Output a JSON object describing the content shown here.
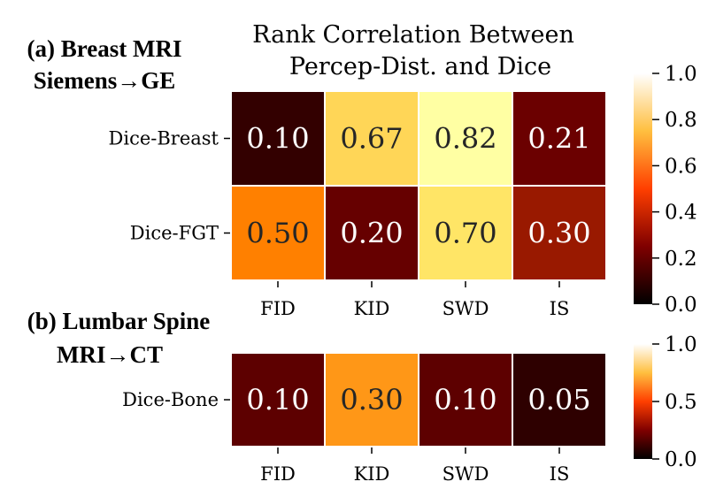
{
  "chart_data": [
    {
      "type": "heatmap",
      "panel_label_lines": [
        "(a) Breast MRI",
        "Siemens→GE"
      ],
      "title_lines": [
        "Rank Correlation Between",
        "Percep-Dist. and Dice"
      ],
      "rows": [
        "Dice-Breast",
        "Dice-FGT"
      ],
      "columns": [
        "FID",
        "KID",
        "SWD",
        "IS"
      ],
      "values": [
        [
          0.1,
          0.67,
          0.82,
          0.21
        ],
        [
          0.5,
          0.2,
          0.7,
          0.3
        ]
      ],
      "value_labels": [
        [
          "0.10",
          "0.67",
          "0.82",
          "0.21"
        ],
        [
          "0.50",
          "0.20",
          "0.70",
          "0.30"
        ]
      ],
      "colorscale": "afmhot",
      "vmin": 0.0,
      "vmax": 1.0,
      "colorbar_ticks": [
        "0.0",
        "0.2",
        "0.4",
        "0.6",
        "0.8",
        "1.0"
      ]
    },
    {
      "type": "heatmap",
      "panel_label_lines": [
        "(b) Lumbar Spine",
        "MRI→CT"
      ],
      "rows": [
        "Dice-Bone"
      ],
      "columns": [
        "FID",
        "KID",
        "SWD",
        "IS"
      ],
      "values": [
        [
          0.1,
          0.3,
          0.1,
          0.05
        ]
      ],
      "value_labels": [
        [
          "0.10",
          "0.30",
          "0.10",
          "0.05"
        ]
      ],
      "colorscale": "afmhot",
      "vmin": 0.0,
      "vmax": 0.55,
      "colorbar_ticks": [
        "0.0",
        "0.5",
        "1.0"
      ]
    }
  ]
}
